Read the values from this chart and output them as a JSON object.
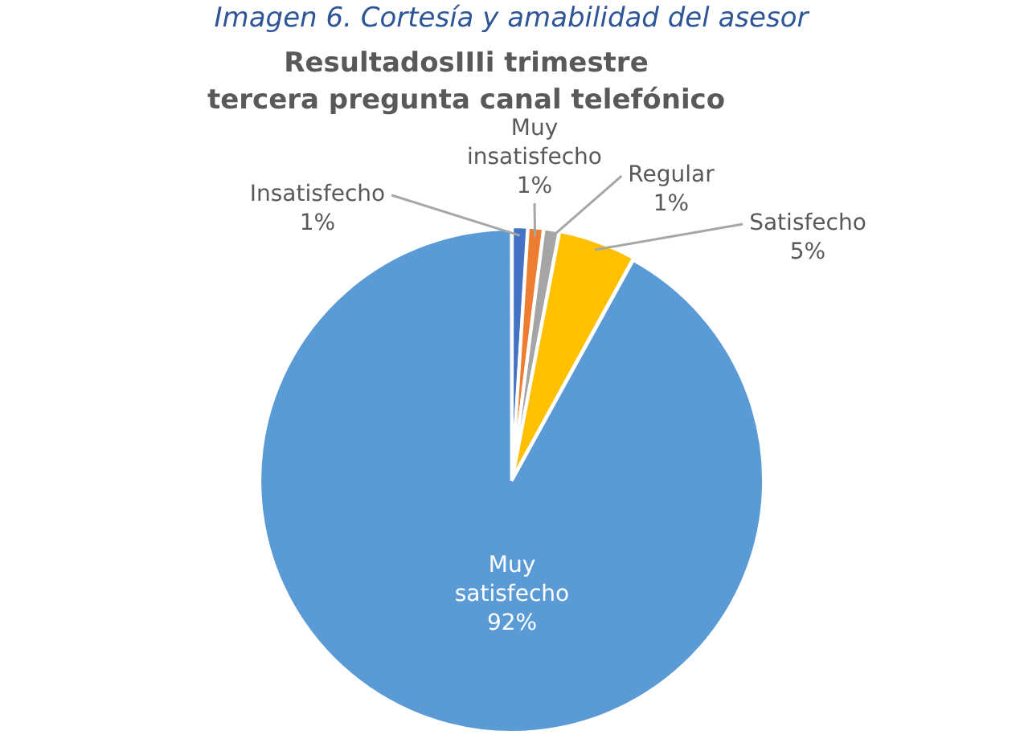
{
  "chart_data": {
    "type": "pie",
    "title": "ResultadosIIIi trimestre\ntercera pregunta canal telefónico",
    "annotations": [
      "Imagen 6. Cortesía y amabilidad del asesor"
    ],
    "categories": [
      "Insatisfecho",
      "Muy insatisfecho",
      "Regular",
      "Satisfecho",
      "Muy satisfecho"
    ],
    "values": [
      1,
      1,
      1,
      5,
      92
    ],
    "colors": [
      "#4472c4",
      "#ed7d31",
      "#a5a5a5",
      "#ffc000",
      "#5b9bd5"
    ],
    "value_labels": [
      "1%",
      "1%",
      "1%",
      "5%",
      "92%"
    ],
    "legend": false
  }
}
